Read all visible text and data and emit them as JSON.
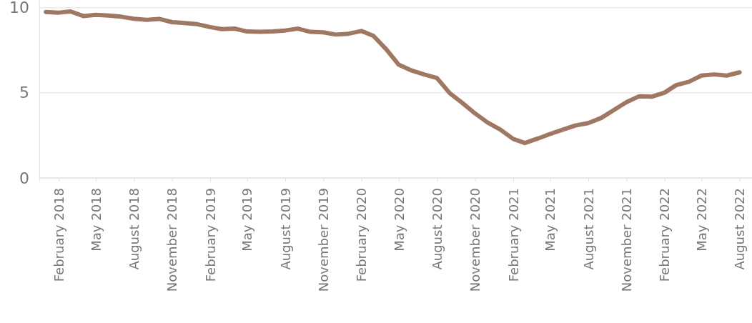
{
  "chart_data": {
    "type": "line",
    "x": [
      "2018-01",
      "2018-02",
      "2018-03",
      "2018-04",
      "2018-05",
      "2018-06",
      "2018-07",
      "2018-08",
      "2018-09",
      "2018-10",
      "2018-11",
      "2018-12",
      "2019-01",
      "2019-02",
      "2019-03",
      "2019-04",
      "2019-05",
      "2019-06",
      "2019-07",
      "2019-08",
      "2019-09",
      "2019-10",
      "2019-11",
      "2019-12",
      "2020-01",
      "2020-02",
      "2020-03",
      "2020-04",
      "2020-05",
      "2020-06",
      "2020-07",
      "2020-08",
      "2020-09",
      "2020-10",
      "2020-11",
      "2020-12",
      "2021-01",
      "2021-02",
      "2021-03",
      "2021-04",
      "2021-05",
      "2021-06",
      "2021-07",
      "2021-08",
      "2021-09",
      "2021-10",
      "2021-11",
      "2021-12",
      "2022-01",
      "2022-02",
      "2022-03",
      "2022-04",
      "2022-05",
      "2022-06",
      "2022-07",
      "2022-08"
    ],
    "series": [
      {
        "color": "#9e7862",
        "values": [
          9.75,
          9.71,
          9.78,
          9.51,
          9.58,
          9.54,
          9.47,
          9.35,
          9.29,
          9.34,
          9.15,
          9.1,
          9.03,
          8.86,
          8.74,
          8.77,
          8.6,
          8.58,
          8.6,
          8.66,
          8.77,
          8.58,
          8.55,
          8.42,
          8.47,
          8.63,
          8.34,
          7.55,
          6.65,
          6.31,
          6.08,
          5.87,
          4.98,
          4.41,
          3.79,
          3.26,
          2.84,
          2.29,
          2.05,
          2.31,
          2.58,
          2.84,
          3.08,
          3.22,
          3.52,
          3.98,
          4.45,
          4.79,
          4.77,
          5.01,
          5.45,
          5.65,
          6.01,
          6.08,
          6.01,
          6.2
        ]
      }
    ],
    "xlim": [
      "2017-12-16",
      "2022-08-31"
    ],
    "xticks": [
      {
        "value": "2018-02",
        "label": "February 2018"
      },
      {
        "value": "2018-05",
        "label": "May 2018"
      },
      {
        "value": "2018-08",
        "label": "August 2018"
      },
      {
        "value": "2018-11",
        "label": "November 2018"
      },
      {
        "value": "2019-02",
        "label": "February 2019"
      },
      {
        "value": "2019-05",
        "label": "May 2019"
      },
      {
        "value": "2019-08",
        "label": "August 2019"
      },
      {
        "value": "2019-11",
        "label": "November 2019"
      },
      {
        "value": "2020-02",
        "label": "February 2020"
      },
      {
        "value": "2020-05",
        "label": "May 2020"
      },
      {
        "value": "2020-08",
        "label": "August 2020"
      },
      {
        "value": "2020-11",
        "label": "November 2020"
      },
      {
        "value": "2021-02",
        "label": "February 2021"
      },
      {
        "value": "2021-05",
        "label": "May 2021"
      },
      {
        "value": "2021-08",
        "label": "August 2021"
      },
      {
        "value": "2021-11",
        "label": "November 2021"
      },
      {
        "value": "2022-02",
        "label": "February 2022"
      },
      {
        "value": "2022-05",
        "label": "May 2022"
      },
      {
        "value": "2022-08",
        "label": "August 2022"
      }
    ],
    "ylim": [
      0,
      10.45
    ],
    "yticks": [
      0,
      5,
      10
    ],
    "grid": "y",
    "marker": "none",
    "line_style": "solid"
  }
}
